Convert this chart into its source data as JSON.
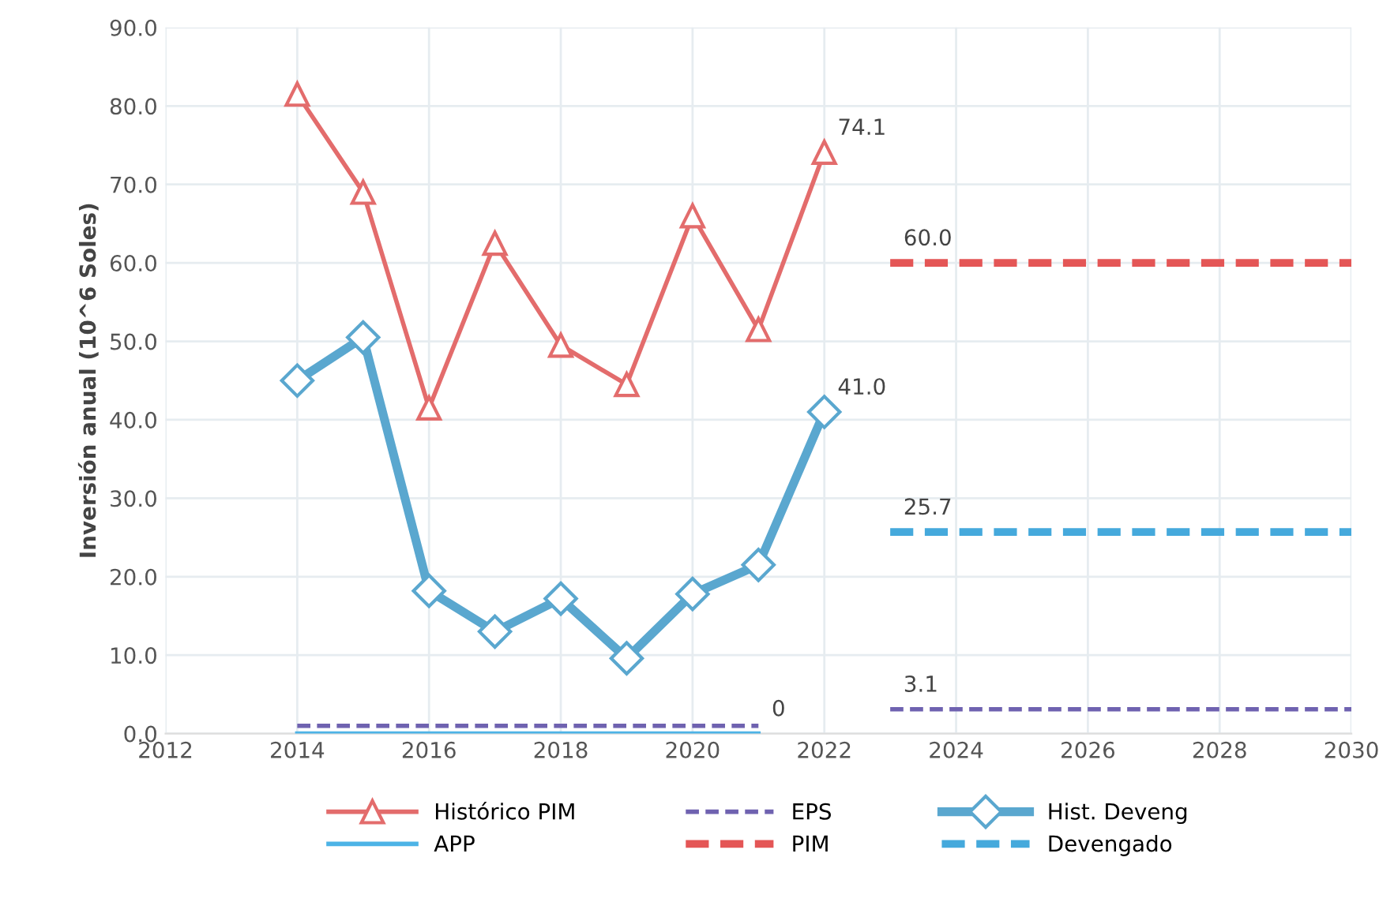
{
  "chart_data": {
    "type": "line",
    "ylabel": "Inversión anual (10^6 Soles)",
    "xlim": [
      2012,
      2030
    ],
    "xticks": [
      2012,
      2014,
      2016,
      2018,
      2020,
      2022,
      2024,
      2026,
      2028,
      2030
    ],
    "ylim": [
      0,
      90
    ],
    "yticks": [
      {
        "value": 0,
        "label": "0.0"
      },
      {
        "value": 10,
        "label": "10.0"
      },
      {
        "value": 20,
        "label": "20.0"
      },
      {
        "value": 30,
        "label": "30.0"
      },
      {
        "value": 40,
        "label": "40.0"
      },
      {
        "value": 50,
        "label": "50.0"
      },
      {
        "value": 60,
        "label": "60.0"
      },
      {
        "value": 70,
        "label": "70.0"
      },
      {
        "value": 80,
        "label": "80.0"
      },
      {
        "value": 90,
        "label": "90.0"
      }
    ],
    "grid": true,
    "legend": "bottom",
    "series": [
      {
        "name": "Histórico PIM",
        "color": "#e36c6c",
        "marker": "triangle",
        "line_style": "solid",
        "x": [
          2014,
          2015,
          2016,
          2017,
          2018,
          2019,
          2020,
          2021,
          2022
        ],
        "values": [
          81.5,
          69.0,
          41.5,
          62.5,
          49.5,
          44.5,
          66.0,
          51.5,
          74.1
        ]
      },
      {
        "name": "EPS",
        "color": "#6f62b0",
        "marker": "none",
        "line_style": "dashed",
        "x": [
          2014,
          2015,
          2016,
          2017,
          2018,
          2019,
          2020,
          2021,
          2022,
          2023,
          2024,
          2025,
          2026,
          2027,
          2028,
          2029,
          2030
        ],
        "values": [
          1.0,
          1.0,
          1.0,
          1.0,
          1.0,
          1.0,
          1.0,
          1.0,
          null,
          3.1,
          3.1,
          3.1,
          3.1,
          3.1,
          3.1,
          3.1,
          3.1
        ]
      },
      {
        "name": "Hist. Deveng",
        "color": "#5aa7cf",
        "marker": "diamond",
        "line_style": "solid",
        "x": [
          2014,
          2015,
          2016,
          2017,
          2018,
          2019,
          2020,
          2021,
          2022
        ],
        "values": [
          45.0,
          50.5,
          18.2,
          13.0,
          17.2,
          9.6,
          17.8,
          21.5,
          41.0
        ]
      },
      {
        "name": "APP",
        "color": "#4db3e6",
        "marker": "none",
        "line_style": "solid",
        "x": [
          2014,
          2015,
          2016,
          2017,
          2018,
          2019,
          2020,
          2021
        ],
        "values": [
          0,
          0,
          0,
          0,
          0,
          0,
          0,
          0
        ]
      },
      {
        "name": "PIM",
        "color": "#e45656",
        "marker": "none",
        "line_style": "dashed",
        "x": [
          2023,
          2024,
          2025,
          2026,
          2027,
          2028,
          2029,
          2030
        ],
        "values": [
          60.0,
          60.0,
          60.0,
          60.0,
          60.0,
          60.0,
          60.0,
          60.0
        ]
      },
      {
        "name": "Devengado",
        "color": "#45a9dc",
        "marker": "none",
        "line_style": "dashed",
        "x": [
          2023,
          2024,
          2025,
          2026,
          2027,
          2028,
          2029,
          2030
        ],
        "values": [
          25.7,
          25.7,
          25.7,
          25.7,
          25.7,
          25.7,
          25.7,
          25.7
        ]
      }
    ],
    "annotations": [
      {
        "text": "74.1",
        "x": 2022,
        "y": 74.1
      },
      {
        "text": "41.0",
        "x": 2022,
        "y": 41.0
      },
      {
        "text": "60.0",
        "x": 2023,
        "y": 60.0
      },
      {
        "text": "25.7",
        "x": 2023,
        "y": 25.7
      },
      {
        "text": "3.1",
        "x": 2023,
        "y": 3.1
      },
      {
        "text": "0",
        "x": 2021,
        "y": 0
      }
    ]
  }
}
